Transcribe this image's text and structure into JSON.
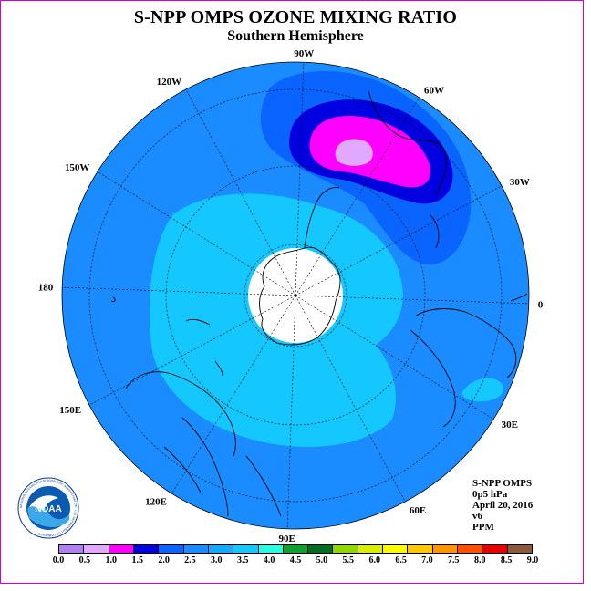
{
  "header": {
    "title": "S-NPP OMPS OZONE MIXING RATIO",
    "subtitle": "Southern Hemisphere"
  },
  "map": {
    "projection": "polar stereographic (south pole)",
    "longitude_labels": [
      {
        "text": "0",
        "lon": 0
      },
      {
        "text": "30W",
        "lon": -30
      },
      {
        "text": "60W",
        "lon": -60
      },
      {
        "text": "90W",
        "lon": -90
      },
      {
        "text": "120W",
        "lon": -120
      },
      {
        "text": "150W",
        "lon": -150
      },
      {
        "text": "180",
        "lon": 180
      },
      {
        "text": "150E",
        "lon": 150
      },
      {
        "text": "120E",
        "lon": 120
      },
      {
        "text": "90E",
        "lon": 90
      },
      {
        "text": "60E",
        "lon": 60
      },
      {
        "text": "30E",
        "lon": 30
      }
    ],
    "graticule_latitudes": [
      -80,
      -60,
      -40
    ],
    "missing_data_region": "south polar cap (white disk)",
    "colors": {
      "background_field": "#1a8cff",
      "inner_ring": "#14c8ff",
      "maximum_core": "#e0a8ff",
      "magenta": "#ff00ff",
      "dark_blue": "#0000e0",
      "blue": "#0a64ff"
    }
  },
  "logo": {
    "text": "NOAA",
    "ring_text": "NATIONAL OCEANIC AND ATMOSPHERIC ADMINISTRATION · U.S. DEPARTMENT OF COMMERCE",
    "icon": "noaa-logo-icon"
  },
  "info": {
    "instrument": "S-NPP OMPS",
    "level": "0p5 hPa",
    "date": "April 20, 2016",
    "version": "v6",
    "units": "PPM"
  },
  "colorbar": {
    "ticks": [
      "0.0",
      "0.5",
      "1.0",
      "1.5",
      "2.0",
      "2.5",
      "3.0",
      "3.5",
      "4.0",
      "4.5",
      "5.0",
      "5.5",
      "6.0",
      "6.5",
      "7.0",
      "7.5",
      "8.0",
      "8.5",
      "9.0"
    ],
    "colors": [
      "#b07ff0",
      "#e0a8ff",
      "#ff00ff",
      "#0000e0",
      "#0a64ff",
      "#1a8cff",
      "#14aaff",
      "#14c8ff",
      "#28ffe0",
      "#10a030",
      "#006e20",
      "#90d800",
      "#d8f000",
      "#ffff00",
      "#ffc800",
      "#ff9600",
      "#ff5000",
      "#e60000",
      "#8b5a3c"
    ]
  }
}
